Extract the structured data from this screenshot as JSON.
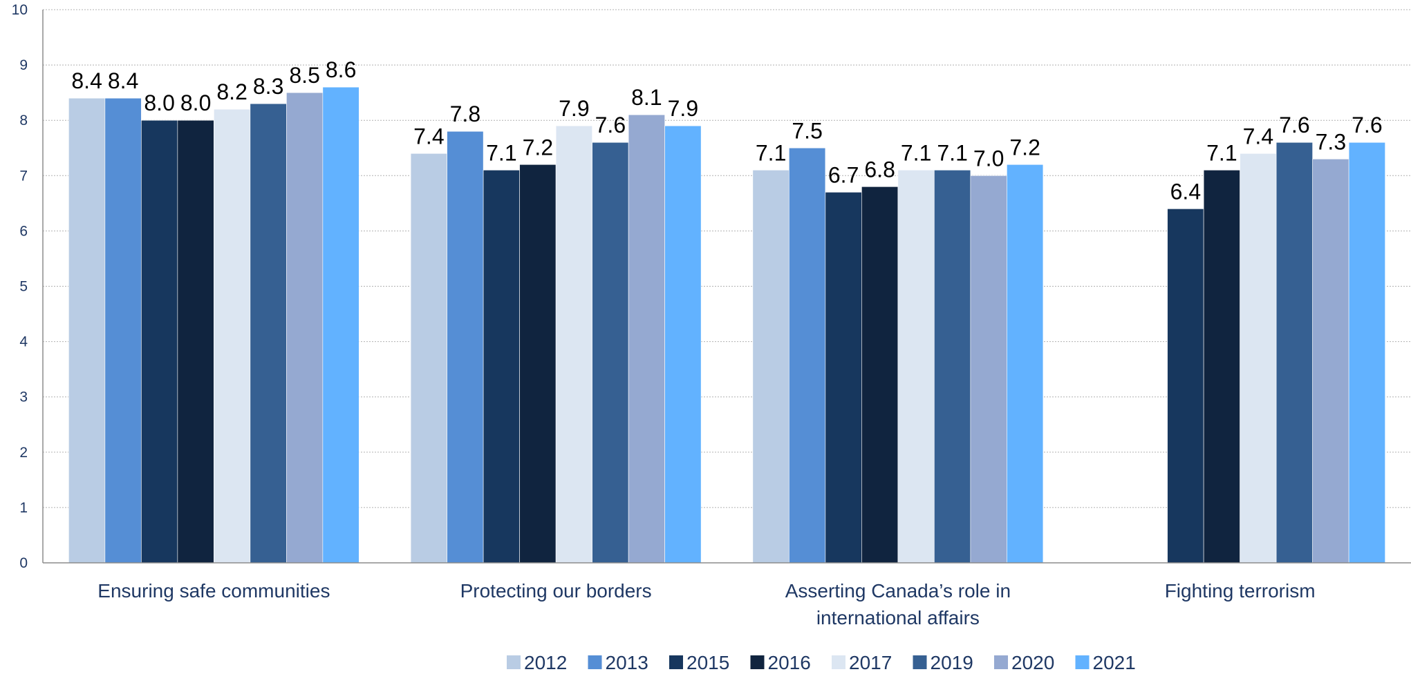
{
  "chart_data": {
    "type": "bar",
    "title": "",
    "xlabel": "",
    "ylabel": "",
    "ylim": [
      0,
      10
    ],
    "yticks": [
      "0",
      "1",
      "2",
      "3",
      "4",
      "5",
      "6",
      "7",
      "8",
      "9",
      "10"
    ],
    "grid": true,
    "legend_position": "bottom",
    "categories": [
      [
        "Ensuring safe communities"
      ],
      [
        "Protecting our borders"
      ],
      [
        "Asserting Canada’s role in",
        "international affairs"
      ],
      [
        "Fighting terrorism"
      ]
    ],
    "series": [
      {
        "name": "2012",
        "color": "#b9cce4",
        "values": [
          8.4,
          7.4,
          7.1,
          null
        ],
        "labels": [
          "8.4",
          "7.4",
          "7.1",
          ""
        ]
      },
      {
        "name": "2013",
        "color": "#558ed5",
        "values": [
          8.4,
          7.8,
          7.5,
          null
        ],
        "labels": [
          "8.4",
          "7.8",
          "7.5",
          ""
        ]
      },
      {
        "name": "2015",
        "color": "#17375e",
        "values": [
          8.0,
          7.1,
          6.7,
          6.4
        ],
        "labels": [
          "8.0",
          "7.1",
          "6.7",
          "6.4"
        ]
      },
      {
        "name": "2016",
        "color": "#10243f",
        "values": [
          8.0,
          7.2,
          6.8,
          7.1
        ],
        "labels": [
          "8.0",
          "7.2",
          "6.8",
          "7.1"
        ]
      },
      {
        "name": "2017",
        "color": "#dce6f2",
        "values": [
          8.2,
          7.9,
          7.1,
          7.4
        ],
        "labels": [
          "8.2",
          "7.9",
          "7.1",
          "7.4"
        ]
      },
      {
        "name": "2019",
        "color": "#366092",
        "values": [
          8.3,
          7.6,
          7.1,
          7.6
        ],
        "labels": [
          "8.3",
          "7.6",
          "7.1",
          "7.6"
        ]
      },
      {
        "name": "2020",
        "color": "#95a9d1",
        "values": [
          8.5,
          8.1,
          7.0,
          7.3
        ],
        "labels": [
          "8.5",
          "8.1",
          "7.0",
          "7.3"
        ]
      },
      {
        "name": "2021",
        "color": "#62b2ff",
        "values": [
          8.6,
          7.9,
          7.2,
          7.6
        ],
        "labels": [
          "8.6",
          "7.9",
          "7.2",
          "7.6"
        ]
      }
    ]
  }
}
